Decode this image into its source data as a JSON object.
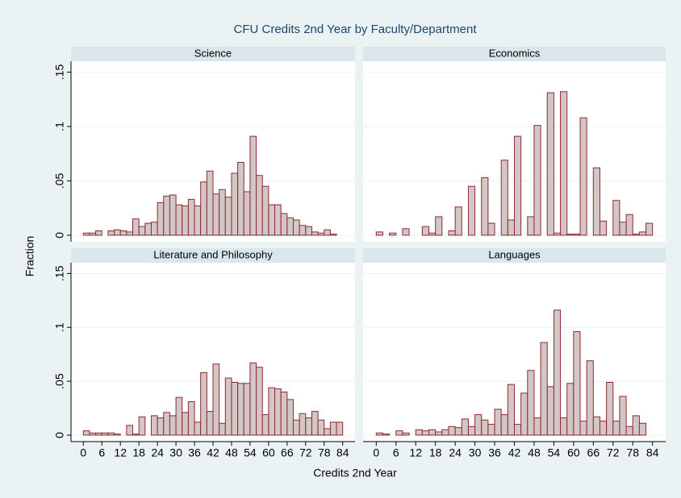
{
  "title": "CFU Credits 2nd Year by Faculty/Department",
  "xlabel": "Credits 2nd Year",
  "ylabel": "Fraction",
  "axes": {
    "xlim": [
      -4,
      88
    ],
    "xticks": [
      0,
      6,
      12,
      18,
      24,
      30,
      36,
      42,
      48,
      54,
      60,
      66,
      72,
      78,
      84
    ],
    "ylim": [
      -0.006,
      0.16
    ],
    "yticks": [
      0,
      {
        "value": 0.05,
        "label": ".05"
      },
      {
        "value": 0.1,
        "label": ".1"
      },
      {
        "value": 0.15,
        "label": ".15"
      }
    ]
  },
  "chart_data": [
    {
      "type": "histogram",
      "title": "Science",
      "color": "#d3c6c6",
      "edgecolor": "#8e2a30",
      "bins": [
        0,
        2,
        4,
        6,
        8,
        10,
        12,
        14,
        16,
        18,
        20,
        22,
        24,
        26,
        28,
        30,
        32,
        34,
        36,
        38,
        40,
        42,
        44,
        46,
        48,
        50,
        52,
        54,
        56,
        58,
        60,
        62,
        64,
        66,
        68,
        70,
        72,
        74,
        76,
        78,
        80,
        82,
        84,
        86
      ],
      "values": [
        0.002,
        0.002,
        0.004,
        0,
        0.004,
        0.005,
        0.004,
        0.003,
        0.015,
        0.008,
        0.011,
        0.012,
        0.03,
        0.036,
        0.037,
        0.028,
        0.027,
        0.033,
        0.027,
        0.049,
        0.059,
        0.038,
        0.042,
        0.035,
        0.057,
        0.067,
        0.04,
        0.091,
        0.055,
        0.045,
        0.028,
        0.028,
        0.02,
        0.016,
        0.014,
        0.009,
        0.008,
        0.003,
        0.002,
        0.005,
        0.001,
        0,
        0
      ]
    },
    {
      "type": "histogram",
      "title": "Economics",
      "color": "#d3c6c6",
      "edgecolor": "#8e2a30",
      "bins": [
        0,
        2,
        4,
        6,
        8,
        10,
        12,
        14,
        16,
        18,
        20,
        22,
        24,
        26,
        28,
        30,
        32,
        34,
        36,
        38,
        40,
        42,
        44,
        46,
        48,
        50,
        52,
        54,
        56,
        58,
        60,
        62,
        64,
        66,
        68,
        70,
        72,
        74,
        76,
        78,
        80,
        82,
        84,
        86
      ],
      "values": [
        0.003,
        0,
        0.002,
        0,
        0.006,
        0,
        0,
        0.008,
        0.002,
        0.017,
        0,
        0.004,
        0.026,
        0,
        0.045,
        0,
        0.053,
        0.011,
        0,
        0.069,
        0.014,
        0.091,
        0,
        0.017,
        0.101,
        0,
        0.131,
        0.002,
        0.132,
        0.001,
        0.001,
        0.108,
        0,
        0.062,
        0.013,
        0,
        0.032,
        0.012,
        0.019,
        0.001,
        0.003,
        0.011,
        0
      ]
    },
    {
      "type": "histogram",
      "title": "Literature and Philosophy",
      "color": "#d3c6c6",
      "edgecolor": "#8e2a30",
      "bins": [
        0,
        2,
        4,
        6,
        8,
        10,
        12,
        14,
        16,
        18,
        20,
        22,
        24,
        26,
        28,
        30,
        32,
        34,
        36,
        38,
        40,
        42,
        44,
        46,
        48,
        50,
        52,
        54,
        56,
        58,
        60,
        62,
        64,
        66,
        68,
        70,
        72,
        74,
        76,
        78,
        80,
        82,
        84,
        86
      ],
      "values": [
        0.004,
        0.002,
        0.002,
        0.002,
        0.002,
        0.001,
        0,
        0.009,
        0.001,
        0.017,
        0,
        0.018,
        0.016,
        0.021,
        0.018,
        0.035,
        0.021,
        0.031,
        0.012,
        0.058,
        0.022,
        0.066,
        0.011,
        0.053,
        0.049,
        0.048,
        0.048,
        0.067,
        0.063,
        0.019,
        0.044,
        0.043,
        0.04,
        0.033,
        0.014,
        0.02,
        0.016,
        0.022,
        0.014,
        0.006,
        0.012,
        0.012,
        0
      ]
    },
    {
      "type": "histogram",
      "title": "Languages",
      "color": "#d3c6c6",
      "edgecolor": "#8e2a30",
      "bins": [
        0,
        2,
        4,
        6,
        8,
        10,
        12,
        14,
        16,
        18,
        20,
        22,
        24,
        26,
        28,
        30,
        32,
        34,
        36,
        38,
        40,
        42,
        44,
        46,
        48,
        50,
        52,
        54,
        56,
        58,
        60,
        62,
        64,
        66,
        68,
        70,
        72,
        74,
        76,
        78,
        80,
        82,
        84,
        86
      ],
      "values": [
        0.002,
        0.001,
        0,
        0.004,
        0.002,
        0,
        0.005,
        0.004,
        0.005,
        0.003,
        0.005,
        0.008,
        0.007,
        0.015,
        0.008,
        0.019,
        0.014,
        0.01,
        0.024,
        0.019,
        0.047,
        0.01,
        0.039,
        0.06,
        0.016,
        0.086,
        0.045,
        0.116,
        0.016,
        0.048,
        0.096,
        0.013,
        0.069,
        0.017,
        0.013,
        0.049,
        0.013,
        0.036,
        0.008,
        0.018,
        0.011,
        0,
        0
      ]
    }
  ]
}
